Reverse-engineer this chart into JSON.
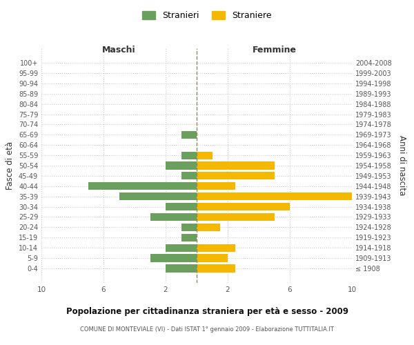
{
  "age_groups": [
    "100+",
    "95-99",
    "90-94",
    "85-89",
    "80-84",
    "75-79",
    "70-74",
    "65-69",
    "60-64",
    "55-59",
    "50-54",
    "45-49",
    "40-44",
    "35-39",
    "30-34",
    "25-29",
    "20-24",
    "15-19",
    "10-14",
    "5-9",
    "0-4"
  ],
  "birth_years": [
    "≤ 1908",
    "1909-1913",
    "1914-1918",
    "1919-1923",
    "1924-1928",
    "1929-1933",
    "1934-1938",
    "1939-1943",
    "1944-1948",
    "1949-1953",
    "1954-1958",
    "1959-1963",
    "1964-1968",
    "1969-1973",
    "1974-1978",
    "1979-1983",
    "1984-1988",
    "1989-1993",
    "1994-1998",
    "1999-2003",
    "2004-2008"
  ],
  "males": [
    0,
    0,
    0,
    0,
    0,
    0,
    0,
    1,
    0,
    1,
    2,
    1,
    7,
    5,
    2,
    3,
    1,
    1,
    2,
    3,
    2
  ],
  "females": [
    0,
    0,
    0,
    0,
    0,
    0,
    0,
    0,
    0,
    1,
    5,
    5,
    2.5,
    10,
    6,
    5,
    1.5,
    0,
    2.5,
    2,
    2.5
  ],
  "male_color": "#6a9f5e",
  "female_color": "#f5b800",
  "center_line_color": "#8b8b5a",
  "background_color": "#ffffff",
  "grid_color": "#cccccc",
  "title": "Popolazione per cittadinanza straniera per età e sesso - 2009",
  "subtitle": "COMUNE DI MONTEVIALE (VI) - Dati ISTAT 1° gennaio 2009 - Elaborazione TUTTITALIA.IT",
  "xlabel_left": "Maschi",
  "xlabel_right": "Femmine",
  "ylabel_left": "Fasce di età",
  "ylabel_right": "Anni di nascita",
  "legend_male": "Stranieri",
  "legend_female": "Straniere",
  "xlim": 10
}
